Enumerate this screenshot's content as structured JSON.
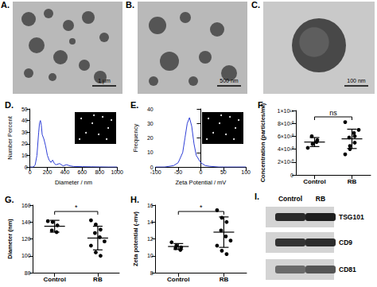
{
  "images": [
    {
      "panel": "A.",
      "scale_bar": "1 μm"
    },
    {
      "panel": "B.",
      "scale_bar": "500 nm"
    },
    {
      "panel": "C.",
      "scale_bar": "100 nm"
    }
  ],
  "chart_data": [
    {
      "panel": "D.",
      "type": "line",
      "x_label": "Diameter / nm",
      "y_label": "Number Percent",
      "x": [
        0,
        20,
        40,
        60,
        80,
        100,
        110,
        120,
        130,
        140,
        160,
        180,
        200,
        220,
        240,
        260,
        280,
        300,
        340,
        380,
        420,
        460,
        500,
        600,
        700,
        800,
        900,
        1000
      ],
      "values": [
        0,
        0,
        0,
        2,
        10,
        30,
        38,
        40,
        36,
        28,
        24,
        18,
        10,
        6,
        4,
        6,
        3,
        2,
        3,
        1,
        2,
        1,
        0.5,
        0.3,
        0.2,
        0.1,
        0,
        0
      ],
      "color": "#2f3fd6",
      "xlim": [
        0,
        1000
      ],
      "xticks": [
        0,
        200,
        400,
        600,
        800,
        1000
      ],
      "ylim": [
        0,
        50
      ],
      "yticks": [
        0,
        10,
        20,
        30,
        40,
        50
      ],
      "grid": false
    },
    {
      "panel": "E.",
      "type": "line",
      "x_label": "Zeta Potential / mV",
      "y_label": "Frequency",
      "x": [
        -100,
        -80,
        -60,
        -50,
        -40,
        -35,
        -30,
        -25,
        -20,
        -15,
        -10,
        0,
        10,
        20,
        40,
        60,
        80,
        100
      ],
      "values": [
        0,
        0,
        1,
        3,
        10,
        20,
        30,
        34,
        28,
        16,
        8,
        3,
        1,
        0.5,
        0,
        0,
        0,
        0
      ],
      "color": "#2f3fd6",
      "xlim": [
        -100,
        100
      ],
      "xticks": [
        -100,
        -50,
        0,
        50,
        100
      ],
      "ylim": [
        0,
        40
      ],
      "yticks": [
        0,
        10,
        20,
        30,
        40
      ],
      "grid": false
    },
    {
      "panel": "F.",
      "type": "scatter",
      "y_label": "Concentration (particles/ml)",
      "categories": [
        "Control",
        "RB"
      ],
      "values": [
        [
          42000000000,
          48000000000,
          54000000000,
          60000000000,
          51000000000
        ],
        [
          32000000000,
          45000000000,
          50000000000,
          58000000000,
          65000000000,
          70000000000,
          82000000000,
          40000000000,
          60000000000
        ]
      ],
      "mean": [
        51000000000,
        56000000000
      ],
      "sd": [
        7000000000,
        15000000000
      ],
      "annotation": "ns",
      "color": "#000000",
      "ylim": [
        0,
        100000000000
      ],
      "yticks": [
        0,
        {
          "value": 20000000000,
          "label": "2×10¹⁰"
        },
        {
          "value": 40000000000,
          "label": "4×10¹⁰"
        },
        {
          "value": 60000000000,
          "label": "6×10¹⁰"
        },
        {
          "value": 80000000000,
          "label": "8×10¹⁰"
        },
        {
          "value": 100000000000,
          "label": "1×10¹¹"
        }
      ],
      "grid": false
    },
    {
      "panel": "G.",
      "type": "scatter",
      "y_label": "Diameter (nm)",
      "categories": [
        "Control",
        "RB"
      ],
      "values": [
        [
          141,
          140,
          136,
          130,
          128
        ],
        [
          142,
          137,
          131,
          127,
          122,
          117,
          112,
          104,
          100
        ]
      ],
      "mean": [
        135,
        121
      ],
      "sd": [
        7,
        14
      ],
      "annotation": "*",
      "color": "#000000",
      "ylim": [
        80,
        160
      ],
      "yticks": [
        80,
        100,
        120,
        140,
        160
      ],
      "grid": false
    },
    {
      "panel": "H.",
      "type": "scatter",
      "y_label": "Zeta potential (-mv)",
      "categories": [
        "Control",
        "RB"
      ],
      "values": [
        [
          11.6,
          11.2,
          11.0,
          10.9,
          10.7
        ],
        [
          15.4,
          14.5,
          14.0,
          13.0,
          12.3,
          11.8,
          11.2,
          10.6,
          10.2
        ]
      ],
      "mean": [
        11.1,
        12.8
      ],
      "sd": [
        0.35,
        1.8
      ],
      "annotation": "*",
      "color": "#000000",
      "ylim": [
        8,
        16
      ],
      "yticks": [
        8,
        10,
        12,
        14,
        16
      ],
      "grid": false
    }
  ],
  "western_blot": {
    "panel": "I.",
    "lanes": [
      "Control",
      "RB"
    ],
    "bands": [
      "TSG101",
      "CD9",
      "CD81"
    ]
  }
}
